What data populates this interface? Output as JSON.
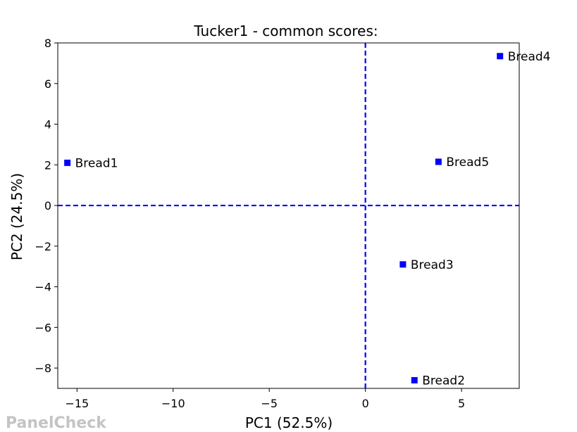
{
  "chart_data": {
    "type": "scatter",
    "title": "Tucker1 - common scores:",
    "xlabel": "PC1 (52.5%)",
    "ylabel": "PC2 (24.5%)",
    "xlim": [
      -16,
      8
    ],
    "ylim": [
      -9,
      8
    ],
    "xticks": [
      -15,
      -10,
      -5,
      0,
      5
    ],
    "xtick_labels": [
      "−15",
      "−10",
      "−5",
      "0",
      "5"
    ],
    "yticks": [
      -8,
      -6,
      -4,
      -2,
      0,
      2,
      4,
      6,
      8
    ],
    "ytick_labels": [
      "−8",
      "−6",
      "−4",
      "−2",
      "0",
      "2",
      "4",
      "6",
      "8"
    ],
    "reference_lines": {
      "x": 0,
      "y": 0,
      "style": "dashed",
      "color": "#0000ff"
    },
    "grid": false,
    "marker_color": "#0000ff",
    "points": [
      {
        "label": "Bread1",
        "x": -15.5,
        "y": 2.1
      },
      {
        "label": "Bread2",
        "x": 2.55,
        "y": -8.6
      },
      {
        "label": "Bread3",
        "x": 1.95,
        "y": -2.9
      },
      {
        "label": "Bread4",
        "x": 7.0,
        "y": 7.35
      },
      {
        "label": "Bread5",
        "x": 3.8,
        "y": 2.15
      }
    ]
  },
  "watermark": "PanelCheck"
}
